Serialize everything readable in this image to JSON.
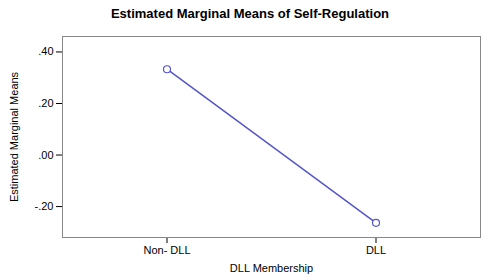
{
  "chart_data": {
    "type": "line",
    "title": "Estimated Marginal Means of Self-Regulation",
    "xlabel": "DLL Membership",
    "ylabel": "Estimated Marginal Means",
    "x": [
      0,
      1
    ],
    "values": [
      0.333,
      -0.263
    ],
    "xlim": [
      -0.5,
      1.5
    ],
    "xticks": [
      {
        "value": 0,
        "label": "Non- DLL"
      },
      {
        "value": 1,
        "label": "DLL"
      }
    ],
    "ylim": [
      -0.32,
      0.46
    ],
    "yticks": [
      {
        "value": -0.2,
        "label": "-.20"
      },
      {
        "value": 0.0,
        "label": ".00"
      },
      {
        "value": 0.2,
        "label": ".20"
      },
      {
        "value": 0.4,
        "label": ".40"
      }
    ],
    "color": "#5555cc",
    "marker": "circle",
    "grid": false
  }
}
